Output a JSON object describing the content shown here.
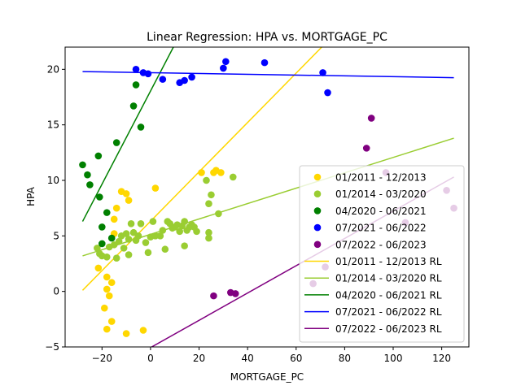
{
  "chart_data": {
    "type": "scatter",
    "title": "Linear Regression: HPA vs. MORTGAGE_PC",
    "xlabel": "MORTGAGE_PC",
    "ylabel": "HPA",
    "xlim": [
      -35.2,
      131.2
    ],
    "ylim": [
      -5,
      22
    ],
    "xticks": [
      -20,
      0,
      20,
      40,
      60,
      80,
      100,
      120
    ],
    "yticks": [
      -5,
      0,
      5,
      10,
      15,
      20
    ],
    "grid": false,
    "legend_position": "lower-right",
    "series": [
      {
        "name": "01/2011 - 12/2013",
        "color": "#ffd700",
        "points": [
          [
            -21.5,
            2.1
          ],
          [
            -19,
            -1.5
          ],
          [
            -18,
            0.2
          ],
          [
            -17,
            -0.4
          ],
          [
            -18,
            1.3
          ],
          [
            -16,
            0.8
          ],
          [
            -16,
            -2.7
          ],
          [
            -18,
            -3.4
          ],
          [
            -10,
            -3.8
          ],
          [
            -3,
            -3.5
          ],
          [
            -15,
            6.5
          ],
          [
            -15,
            5.2
          ],
          [
            -14,
            7.5
          ],
          [
            -12,
            9.0
          ],
          [
            -10,
            8.8
          ],
          [
            -9,
            8.2
          ],
          [
            2,
            9.3
          ],
          [
            21,
            10.7
          ],
          [
            26,
            10.7
          ],
          [
            27,
            10.9
          ],
          [
            29,
            10.7
          ]
        ]
      },
      {
        "name": "01/2014 - 03/2020",
        "color": "#9acd32",
        "points": [
          [
            -22,
            3.9
          ],
          [
            -21,
            3.4
          ],
          [
            -20,
            3.2
          ],
          [
            -18,
            3.1
          ],
          [
            -17,
            4.0
          ],
          [
            -15,
            4.2
          ],
          [
            -14,
            3.0
          ],
          [
            -13,
            4.5
          ],
          [
            -12,
            5.0
          ],
          [
            -11,
            3.9
          ],
          [
            -10,
            5.2
          ],
          [
            -9,
            4.7
          ],
          [
            -9,
            3.3
          ],
          [
            -8,
            6.1
          ],
          [
            -7,
            5.3
          ],
          [
            -6,
            4.6
          ],
          [
            -5,
            5.0
          ],
          [
            -4,
            6.1
          ],
          [
            -2,
            4.4
          ],
          [
            -1,
            3.5
          ],
          [
            0,
            4.9
          ],
          [
            1,
            6.3
          ],
          [
            2,
            5.0
          ],
          [
            4,
            5.0
          ],
          [
            5,
            5.5
          ],
          [
            6,
            3.8
          ],
          [
            7,
            6.3
          ],
          [
            8,
            6.1
          ],
          [
            9,
            5.7
          ],
          [
            10,
            5.8
          ],
          [
            11,
            6.0
          ],
          [
            12,
            5.4
          ],
          [
            13,
            5.9
          ],
          [
            14,
            6.3
          ],
          [
            14,
            4.1
          ],
          [
            15,
            5.5
          ],
          [
            16,
            5.8
          ],
          [
            17,
            6.0
          ],
          [
            18,
            5.8
          ],
          [
            19,
            5.4
          ],
          [
            23,
            10.0
          ],
          [
            24,
            7.9
          ],
          [
            24,
            4.8
          ],
          [
            24,
            5.3
          ],
          [
            25,
            8.7
          ],
          [
            28,
            7.0
          ],
          [
            34,
            10.3
          ]
        ]
      },
      {
        "name": "04/2020 - 06/2021",
        "color": "#008000",
        "points": [
          [
            -28,
            11.4
          ],
          [
            -26,
            10.5
          ],
          [
            -25,
            9.6
          ],
          [
            -21.5,
            12.2
          ],
          [
            -21,
            8.5
          ],
          [
            -20,
            4.3
          ],
          [
            -20,
            5.8
          ],
          [
            -18,
            7.1
          ],
          [
            -16,
            4.8
          ],
          [
            -14,
            13.4
          ],
          [
            -7,
            16.7
          ],
          [
            -6,
            18.6
          ],
          [
            -4,
            14.8
          ]
        ]
      },
      {
        "name": "07/2021 - 06/2022",
        "color": "#0000ff",
        "points": [
          [
            -6,
            20.0
          ],
          [
            -3,
            19.7
          ],
          [
            -1,
            19.6
          ],
          [
            5,
            19.1
          ],
          [
            12,
            18.8
          ],
          [
            14,
            19.0
          ],
          [
            17,
            19.3
          ],
          [
            30,
            20.1
          ],
          [
            31,
            20.7
          ],
          [
            47,
            20.6
          ],
          [
            71,
            19.7
          ],
          [
            73,
            17.9
          ]
        ]
      },
      {
        "name": "07/2022 - 06/2023",
        "color": "#800080",
        "points": [
          [
            26,
            -0.4
          ],
          [
            33,
            -0.1
          ],
          [
            35,
            -0.2
          ],
          [
            67,
            0.7
          ],
          [
            72,
            2.2
          ],
          [
            89,
            12.9
          ],
          [
            91,
            15.6
          ],
          [
            97,
            10.7
          ],
          [
            105,
            6.2
          ],
          [
            122,
            9.1
          ],
          [
            125,
            7.5
          ]
        ]
      }
    ],
    "regression_lines": [
      {
        "name": "01/2011 - 12/2013 RL",
        "color": "#ffd700",
        "x": [
          -28,
          125
        ],
        "y": [
          0.1,
          34.1
        ]
      },
      {
        "name": "01/2014 - 03/2020 RL",
        "color": "#9acd32",
        "x": [
          -28,
          125
        ],
        "y": [
          3.2,
          13.8
        ]
      },
      {
        "name": "04/2020 - 06/2021 RL",
        "color": "#008000",
        "x": [
          -28,
          125
        ],
        "y": [
          6.3,
          70.5
        ]
      },
      {
        "name": "07/2021 - 06/2022 RL",
        "color": "#0000ff",
        "x": [
          -28,
          125
        ],
        "y": [
          19.8,
          19.25
        ]
      },
      {
        "name": "07/2022 - 06/2023 RL",
        "color": "#800080",
        "x": [
          -28,
          125
        ],
        "y": [
          -8.5,
          10.3
        ]
      }
    ]
  }
}
